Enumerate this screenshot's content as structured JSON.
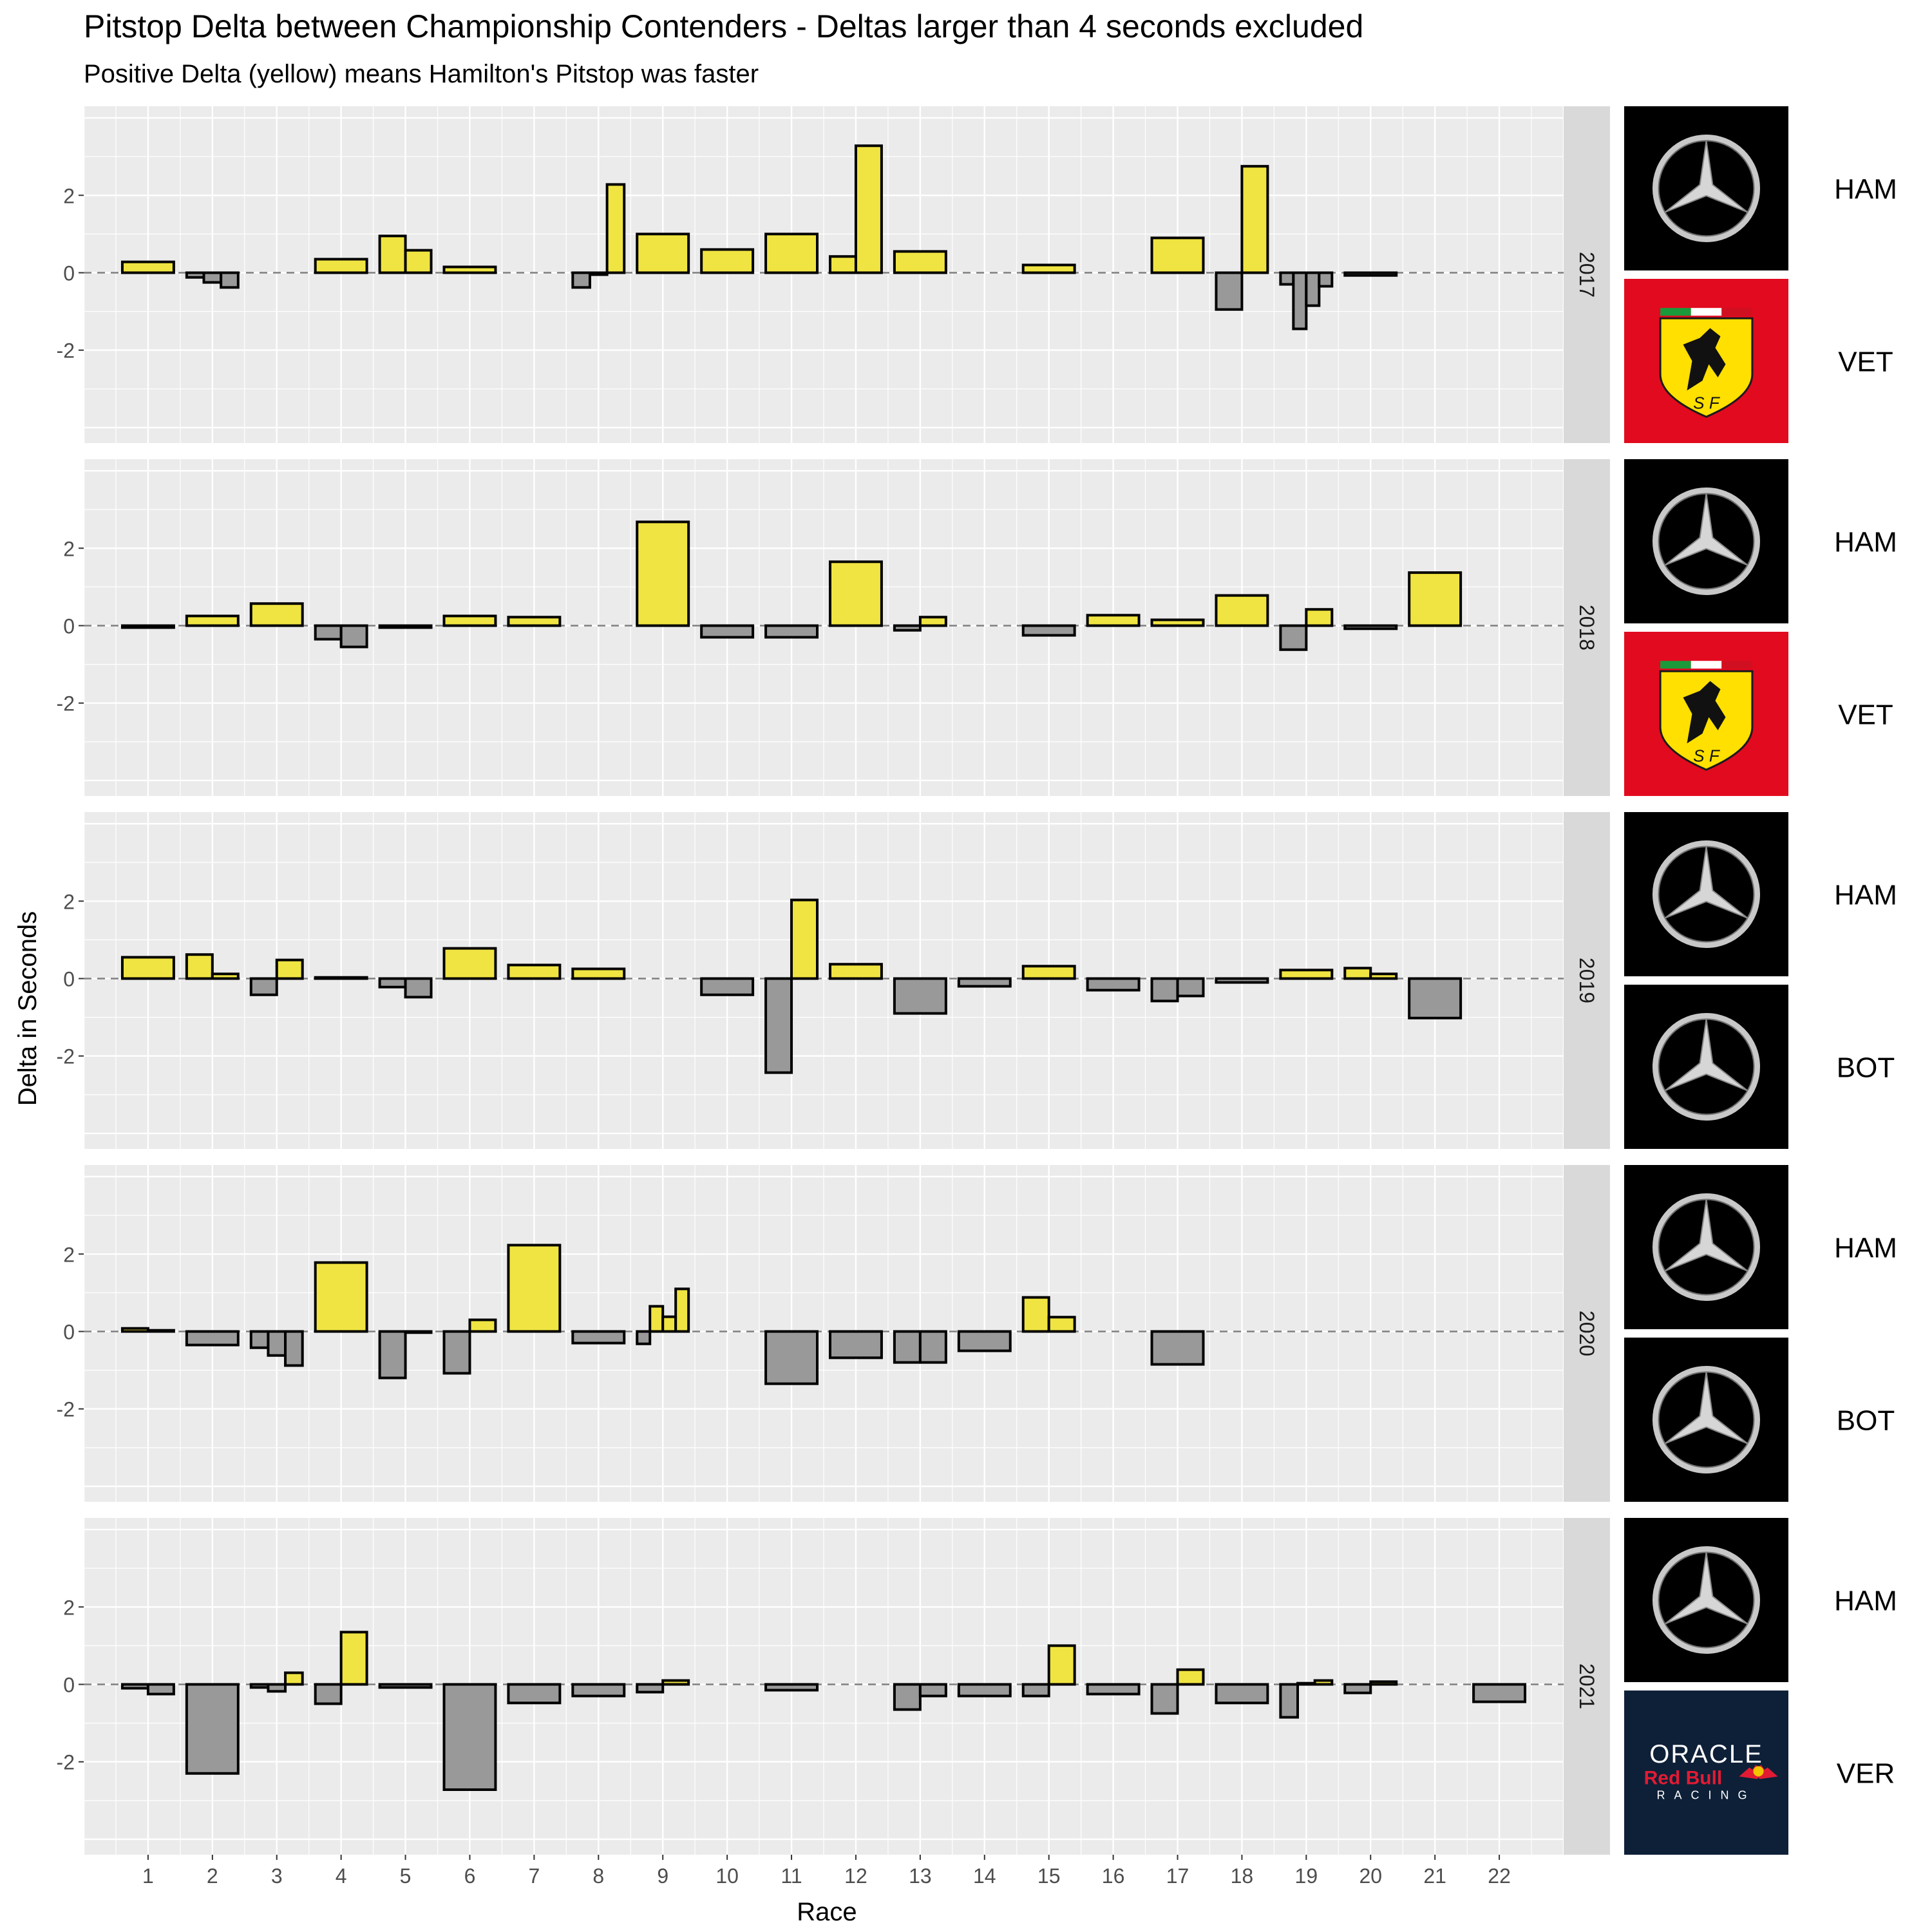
{
  "chart_data": {
    "type": "bar",
    "title": "Pitstop Delta between Championship Contenders - Deltas larger than 4 seconds excluded",
    "subtitle": "Positive Delta (yellow) means Hamilton's Pitstop was faster",
    "xlabel": "Race",
    "ylabel": "Delta in Seconds",
    "x_ticks": [
      "1",
      "2",
      "3",
      "4",
      "5",
      "6",
      "7",
      "8",
      "9",
      "10",
      "11",
      "12",
      "13",
      "14",
      "15",
      "16",
      "17",
      "18",
      "19",
      "20",
      "21",
      "22"
    ],
    "xlim": [
      0,
      23
    ],
    "y_ticks": [
      "2",
      "0",
      "-2"
    ],
    "ylim": [
      -4.4,
      4.3
    ],
    "colors": {
      "positive": "#F0E442",
      "negative": "#999999",
      "panel": "#EBEBEB",
      "strip": "#D9D9D9"
    },
    "facets": [
      {
        "year": "2017",
        "drivers": [
          {
            "code": "HAM",
            "logo": "mercedes-logo"
          },
          {
            "code": "VET",
            "logo": "ferrari-logo"
          }
        ],
        "races": [
          {
            "race": 1,
            "deltas": [
              0.28
            ]
          },
          {
            "race": 2,
            "deltas": [
              -0.12,
              -0.25,
              -0.38
            ]
          },
          {
            "race": 4,
            "deltas": [
              0.35
            ]
          },
          {
            "race": 5,
            "deltas": [
              0.95,
              0.58
            ]
          },
          {
            "race": 6,
            "deltas": [
              0.15
            ]
          },
          {
            "race": 8,
            "deltas": [
              -0.38,
              -0.05,
              2.28
            ]
          },
          {
            "race": 9,
            "deltas": [
              1.0
            ]
          },
          {
            "race": 10,
            "deltas": [
              0.6
            ]
          },
          {
            "race": 11,
            "deltas": [
              1.0
            ]
          },
          {
            "race": 12,
            "deltas": [
              0.42,
              3.28
            ]
          },
          {
            "race": 13,
            "deltas": [
              0.55
            ]
          },
          {
            "race": 15,
            "deltas": [
              0.2
            ]
          },
          {
            "race": 17,
            "deltas": [
              0.9
            ]
          },
          {
            "race": 18,
            "deltas": [
              -0.95,
              2.75
            ]
          },
          {
            "race": 19,
            "deltas": [
              -0.3,
              -1.45,
              -0.85,
              -0.35
            ]
          },
          {
            "race": 20,
            "deltas": [
              -0.07
            ]
          }
        ]
      },
      {
        "year": "2018",
        "drivers": [
          {
            "code": "HAM",
            "logo": "mercedes-logo"
          },
          {
            "code": "VET",
            "logo": "ferrari-logo"
          }
        ],
        "races": [
          {
            "race": 1,
            "deltas": [
              -0.05
            ]
          },
          {
            "race": 2,
            "deltas": [
              0.25
            ]
          },
          {
            "race": 3,
            "deltas": [
              0.57
            ]
          },
          {
            "race": 4,
            "deltas": [
              -0.35,
              -0.55
            ]
          },
          {
            "race": 5,
            "deltas": [
              -0.05
            ]
          },
          {
            "race": 6,
            "deltas": [
              0.25
            ]
          },
          {
            "race": 7,
            "deltas": [
              0.22
            ]
          },
          {
            "race": 9,
            "deltas": [
              2.68
            ]
          },
          {
            "race": 10,
            "deltas": [
              -0.3
            ]
          },
          {
            "race": 11,
            "deltas": [
              -0.3
            ]
          },
          {
            "race": 12,
            "deltas": [
              1.65
            ]
          },
          {
            "race": 13,
            "deltas": [
              -0.12,
              0.22
            ]
          },
          {
            "race": 15,
            "deltas": [
              -0.25
            ]
          },
          {
            "race": 16,
            "deltas": [
              0.27
            ]
          },
          {
            "race": 17,
            "deltas": [
              0.15
            ]
          },
          {
            "race": 18,
            "deltas": [
              0.78
            ]
          },
          {
            "race": 19,
            "deltas": [
              -0.62,
              0.42
            ]
          },
          {
            "race": 20,
            "deltas": [
              -0.08
            ]
          },
          {
            "race": 21,
            "deltas": [
              1.37
            ]
          }
        ]
      },
      {
        "year": "2019",
        "drivers": [
          {
            "code": "HAM",
            "logo": "mercedes-logo"
          },
          {
            "code": "BOT",
            "logo": "mercedes-logo"
          }
        ],
        "races": [
          {
            "race": 1,
            "deltas": [
              0.55
            ]
          },
          {
            "race": 2,
            "deltas": [
              0.62,
              0.12
            ]
          },
          {
            "race": 3,
            "deltas": [
              -0.42,
              0.48
            ]
          },
          {
            "race": 4,
            "deltas": [
              0.03
            ]
          },
          {
            "race": 5,
            "deltas": [
              -0.22,
              -0.48
            ]
          },
          {
            "race": 6,
            "deltas": [
              0.78
            ]
          },
          {
            "race": 7,
            "deltas": [
              0.35
            ]
          },
          {
            "race": 8,
            "deltas": [
              0.25
            ]
          },
          {
            "race": 10,
            "deltas": [
              -0.42
            ]
          },
          {
            "race": 11,
            "deltas": [
              -2.43,
              2.03
            ]
          },
          {
            "race": 12,
            "deltas": [
              0.37
            ]
          },
          {
            "race": 13,
            "deltas": [
              -0.9
            ]
          },
          {
            "race": 14,
            "deltas": [
              -0.2
            ]
          },
          {
            "race": 15,
            "deltas": [
              0.32
            ]
          },
          {
            "race": 16,
            "deltas": [
              -0.3
            ]
          },
          {
            "race": 17,
            "deltas": [
              -0.58,
              -0.45
            ]
          },
          {
            "race": 18,
            "deltas": [
              -0.1
            ]
          },
          {
            "race": 19,
            "deltas": [
              0.22
            ]
          },
          {
            "race": 20,
            "deltas": [
              0.27,
              0.12
            ]
          },
          {
            "race": 21,
            "deltas": [
              -1.02
            ]
          }
        ]
      },
      {
        "year": "2020",
        "drivers": [
          {
            "code": "HAM",
            "logo": "mercedes-logo"
          },
          {
            "code": "BOT",
            "logo": "mercedes-logo"
          }
        ],
        "races": [
          {
            "race": 1,
            "deltas": [
              0.08,
              0.03
            ]
          },
          {
            "race": 2,
            "deltas": [
              -0.35
            ]
          },
          {
            "race": 3,
            "deltas": [
              -0.42,
              -0.62,
              -0.88
            ]
          },
          {
            "race": 4,
            "deltas": [
              1.78
            ]
          },
          {
            "race": 5,
            "deltas": [
              -1.2,
              -0.03
            ]
          },
          {
            "race": 6,
            "deltas": [
              -1.08,
              0.3
            ]
          },
          {
            "race": 7,
            "deltas": [
              2.23
            ]
          },
          {
            "race": 8,
            "deltas": [
              -0.3
            ]
          },
          {
            "race": 9,
            "deltas": [
              -0.32,
              0.65,
              0.38,
              1.1
            ]
          },
          {
            "race": 11,
            "deltas": [
              -1.35
            ]
          },
          {
            "race": 12,
            "deltas": [
              -0.68
            ]
          },
          {
            "race": 13,
            "deltas": [
              -0.8,
              -0.8
            ]
          },
          {
            "race": 14,
            "deltas": [
              -0.5
            ]
          },
          {
            "race": 15,
            "deltas": [
              0.88,
              0.37
            ]
          },
          {
            "race": 17,
            "deltas": [
              -0.85
            ]
          }
        ]
      },
      {
        "year": "2021",
        "drivers": [
          {
            "code": "HAM",
            "logo": "mercedes-logo"
          },
          {
            "code": "VER",
            "logo": "redbull-logo"
          }
        ],
        "logo_text": {
          "oracle": "ORACLE",
          "red_bull": "Red Bull",
          "racing": "RACING"
        },
        "races": [
          {
            "race": 1,
            "deltas": [
              -0.1,
              -0.25
            ]
          },
          {
            "race": 2,
            "deltas": [
              -2.3
            ]
          },
          {
            "race": 3,
            "deltas": [
              -0.08,
              -0.18,
              0.3
            ]
          },
          {
            "race": 4,
            "deltas": [
              -0.5,
              1.35
            ]
          },
          {
            "race": 5,
            "deltas": [
              -0.08
            ]
          },
          {
            "race": 6,
            "deltas": [
              -2.72
            ]
          },
          {
            "race": 7,
            "deltas": [
              -0.48
            ]
          },
          {
            "race": 8,
            "deltas": [
              -0.3
            ]
          },
          {
            "race": 9,
            "deltas": [
              -0.2,
              0.1
            ]
          },
          {
            "race": 11,
            "deltas": [
              -0.15
            ]
          },
          {
            "race": 13,
            "deltas": [
              -0.65,
              -0.3
            ]
          },
          {
            "race": 14,
            "deltas": [
              -0.3
            ]
          },
          {
            "race": 15,
            "deltas": [
              -0.3,
              1.0
            ]
          },
          {
            "race": 16,
            "deltas": [
              -0.25
            ]
          },
          {
            "race": 17,
            "deltas": [
              -0.75,
              0.38
            ]
          },
          {
            "race": 18,
            "deltas": [
              -0.48
            ]
          },
          {
            "race": 19,
            "deltas": [
              -0.85,
              0.03,
              0.1
            ]
          },
          {
            "race": 20,
            "deltas": [
              -0.22,
              0.07
            ]
          },
          {
            "race": 22,
            "deltas": [
              -0.45
            ]
          }
        ]
      }
    ]
  }
}
